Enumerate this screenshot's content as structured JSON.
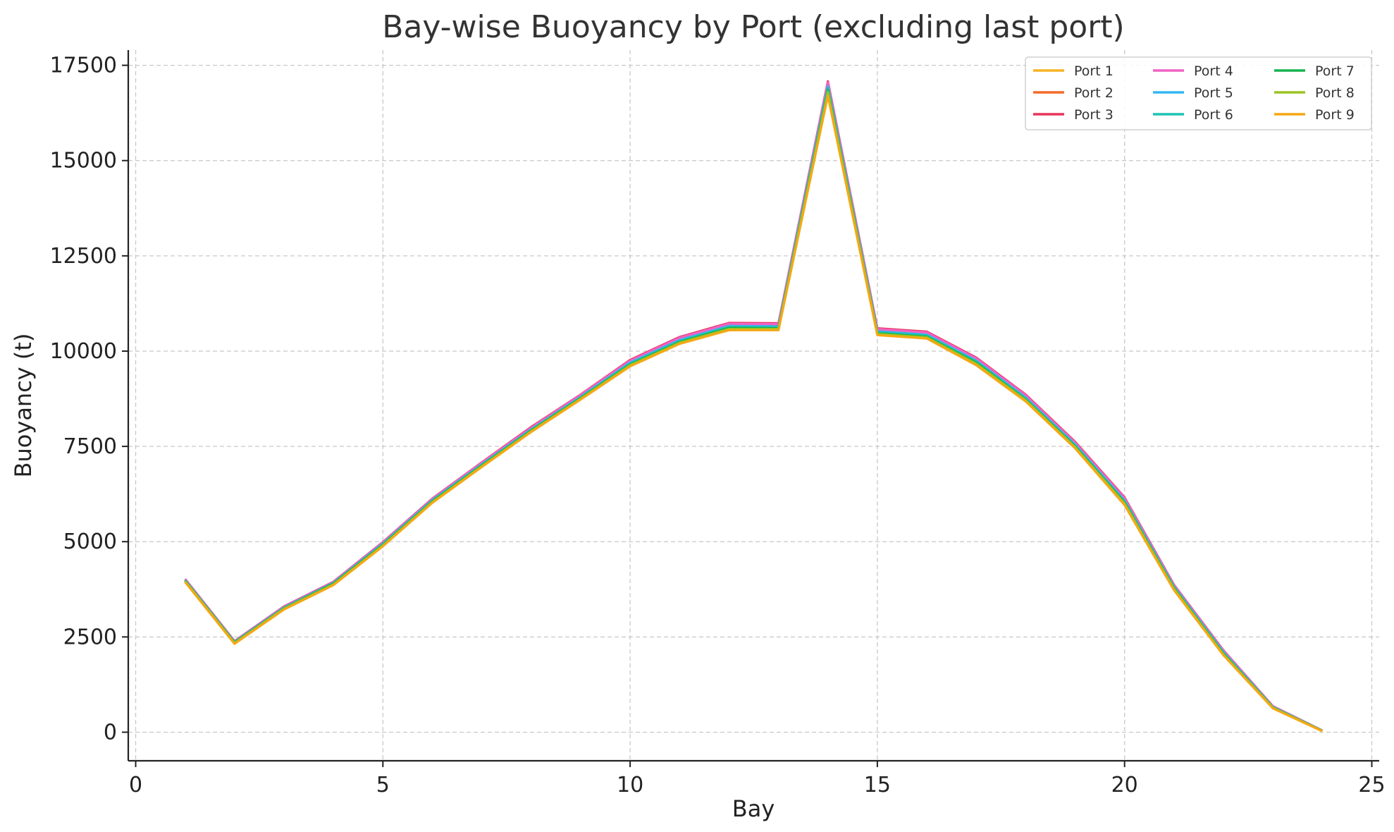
{
  "chart_data": {
    "type": "line",
    "title": "Bay-wise Buoyancy by Port (excluding last port)",
    "xlabel": "Bay",
    "ylabel": "Buoyancy (t)",
    "xlim": [
      -0.15,
      25.15
    ],
    "ylim": [
      -750,
      17900
    ],
    "xticks": [
      0,
      5,
      10,
      15,
      20,
      25
    ],
    "yticks": [
      0,
      2500,
      5000,
      7500,
      10000,
      12500,
      15000,
      17500
    ],
    "grid": true,
    "legend_position": "top-right",
    "legend_columns": 3,
    "x": [
      1,
      2,
      3,
      4,
      5,
      6,
      7,
      8,
      9,
      10,
      11,
      12,
      13,
      14,
      15,
      16,
      17,
      18,
      19,
      20,
      21,
      22,
      23,
      24
    ],
    "series": [
      {
        "name": "Port 1",
        "color": "#f5b324",
        "values": [
          3950,
          2330,
          3230,
          3870,
          4890,
          6030,
          6970,
          7890,
          8740,
          9610,
          10200,
          10560,
          10560,
          16750,
          10430,
          10340,
          9640,
          8690,
          7460,
          5970,
          3740,
          2030,
          630,
          30
        ]
      },
      {
        "name": "Port 2",
        "color": "#f26b2a",
        "values": [
          3990,
          2370,
          3280,
          3920,
          4950,
          6090,
          7040,
          7960,
          8810,
          9710,
          10310,
          10680,
          10680,
          17000,
          10540,
          10460,
          9770,
          8790,
          7560,
          6090,
          3820,
          2100,
          660,
          40
        ]
      },
      {
        "name": "Port 3",
        "color": "#e8335a",
        "values": [
          4020,
          2390,
          3300,
          3950,
          4990,
          6130,
          7080,
          8010,
          8860,
          9770,
          10370,
          10740,
          10730,
          17080,
          10600,
          10510,
          9830,
          8860,
          7620,
          6160,
          3870,
          2150,
          680,
          45
        ]
      },
      {
        "name": "Port 4",
        "color": "#f062c4",
        "values": [
          4010,
          2380,
          3290,
          3940,
          4980,
          6120,
          7070,
          7990,
          8850,
          9750,
          10350,
          10720,
          10710,
          17050,
          10580,
          10490,
          9810,
          8840,
          7600,
          6140,
          3860,
          2140,
          675,
          44
        ]
      },
      {
        "name": "Port 5",
        "color": "#34b7f0",
        "values": [
          3990,
          2370,
          3270,
          3920,
          4950,
          6090,
          7030,
          7950,
          8800,
          9700,
          10290,
          10660,
          10650,
          16950,
          10520,
          10430,
          9750,
          8780,
          7550,
          6080,
          3820,
          2100,
          660,
          40
        ]
      },
      {
        "name": "Port 6",
        "color": "#1dc4b4",
        "values": [
          3980,
          2360,
          3260,
          3910,
          4930,
          6070,
          7010,
          7930,
          8780,
          9670,
          10260,
          10630,
          10620,
          16900,
          10490,
          10400,
          9720,
          8750,
          7520,
          6050,
          3800,
          2080,
          650,
          38
        ]
      },
      {
        "name": "Port 7",
        "color": "#16b34f",
        "values": [
          3970,
          2350,
          3250,
          3900,
          4920,
          6060,
          7000,
          7920,
          8770,
          9650,
          10240,
          10610,
          10600,
          16850,
          10470,
          10380,
          9700,
          8730,
          7500,
          6030,
          3780,
          2060,
          645,
          35
        ]
      },
      {
        "name": "Port 8",
        "color": "#9ac424",
        "values": [
          3960,
          2340,
          3240,
          3880,
          4900,
          6040,
          6980,
          7900,
          8750,
          9630,
          10220,
          10580,
          10580,
          16800,
          10450,
          10360,
          9670,
          8710,
          7480,
          6000,
          3760,
          2040,
          640,
          32
        ]
      },
      {
        "name": "Port 9",
        "color": "#f5a814",
        "values": [
          3940,
          2320,
          3220,
          3860,
          4880,
          6020,
          6960,
          7880,
          8730,
          9600,
          10190,
          10550,
          10550,
          16700,
          10420,
          10330,
          9630,
          8680,
          7450,
          5960,
          3730,
          2020,
          625,
          28
        ]
      }
    ]
  }
}
